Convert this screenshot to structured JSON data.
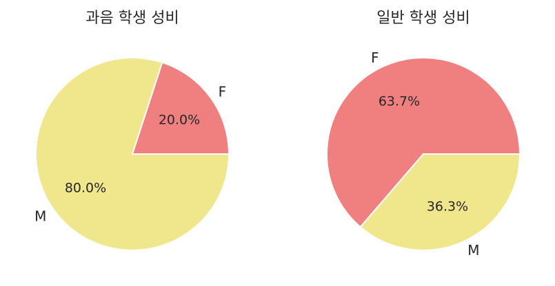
{
  "chart_data": [
    {
      "type": "pie",
      "title": "과음 학생 성비",
      "categories": [
        "F",
        "M"
      ],
      "values": [
        20.0,
        80.0
      ],
      "value_labels": [
        "20.0%",
        "80.0%"
      ],
      "colors": [
        "#f08080",
        "#f0e68c"
      ],
      "start_angle_deg": 0,
      "direction": "counterclockwise",
      "legend": "none"
    },
    {
      "type": "pie",
      "title": "일반 학생 성비",
      "categories": [
        "F",
        "M"
      ],
      "values": [
        63.7,
        36.3
      ],
      "value_labels": [
        "63.7%",
        "36.3%"
      ],
      "colors": [
        "#f08080",
        "#f0e68c"
      ],
      "start_angle_deg": 0,
      "direction": "counterclockwise",
      "legend": "none"
    }
  ]
}
